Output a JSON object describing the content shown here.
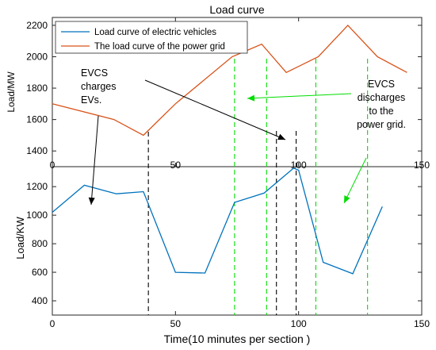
{
  "chart_data": {
    "type": "line",
    "title": "Load curve",
    "xlabel": "Time(10 minutes per section  )",
    "top": {
      "ylabel": "Load/MW",
      "xlim": [
        0,
        150
      ],
      "ylim": [
        1300,
        2250
      ],
      "xticks": [
        0,
        50,
        100,
        150
      ],
      "yticks": [
        1400,
        1600,
        1800,
        2000,
        2200
      ],
      "series": [
        {
          "name": "The load curve of the power grid",
          "color": "#d95319",
          "x": [
            0,
            25,
            37,
            50,
            73,
            85,
            95,
            108,
            120,
            132,
            144
          ],
          "y": [
            1700,
            1600,
            1500,
            1700,
            2000,
            2080,
            1900,
            2000,
            2200,
            2000,
            1900
          ]
        }
      ]
    },
    "bottom": {
      "ylabel": "Load/KW",
      "xlim": [
        0,
        150
      ],
      "ylim": [
        300,
        1340
      ],
      "xticks": [
        0,
        50,
        100,
        150
      ],
      "yticks": [
        400,
        600,
        800,
        1000,
        1200
      ],
      "series": [
        {
          "name": "Load curve of electric vehicles",
          "color": "#0072bd",
          "x": [
            0,
            13,
            26,
            37,
            50,
            62,
            74,
            86,
            98,
            100,
            110,
            122,
            134
          ],
          "y": [
            1020,
            1210,
            1150,
            1165,
            600,
            595,
            1090,
            1155,
            1330,
            1315,
            670,
            590,
            1060
          ]
        }
      ]
    },
    "vlines": [
      {
        "x": 39,
        "color": "#000000"
      },
      {
        "x": 74,
        "color": "#00dd00"
      },
      {
        "x": 87,
        "color": "#00dd00"
      },
      {
        "x": 91,
        "color": "#000000"
      },
      {
        "x": 99,
        "color": "#000000"
      },
      {
        "x": 107,
        "color": "#00dd00"
      },
      {
        "x": 128,
        "color": "#00dd00"
      }
    ],
    "annotations": [
      {
        "lines": [
          "EVCS",
          "charges",
          "EVs."
        ],
        "color": "#000000"
      },
      {
        "lines": [
          "EVCS",
          "discharges",
          "to the",
          "power grid."
        ],
        "color": "#00dd00"
      }
    ],
    "legend_position": "top-left"
  }
}
